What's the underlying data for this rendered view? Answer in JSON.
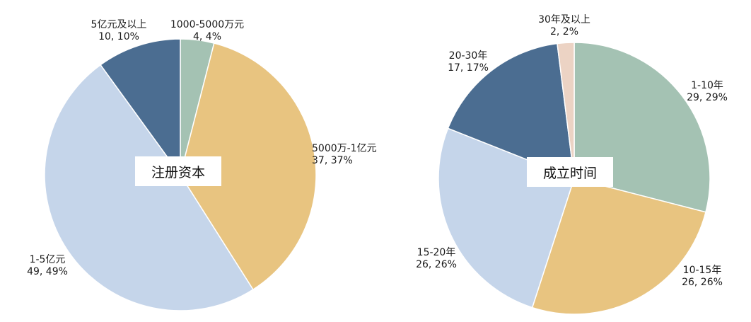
{
  "chart_data": [
    {
      "type": "pie",
      "title": "注册资本",
      "slices": [
        {
          "label": "1000-5000万元",
          "count": 4,
          "percent": "4%",
          "value": 4,
          "color": "#a4c2b3"
        },
        {
          "label": "5000万-1亿元",
          "count": 37,
          "percent": "37%",
          "value": 37,
          "color": "#e8c480"
        },
        {
          "label": "1-5亿元",
          "count": 49,
          "percent": "49%",
          "value": 49,
          "color": "#c5d5ea"
        },
        {
          "label": "5亿元及以上",
          "count": 10,
          "percent": "10%",
          "value": 10,
          "color": "#4b6d91"
        }
      ]
    },
    {
      "type": "pie",
      "title": "成立时间",
      "slices": [
        {
          "label": "1-10年",
          "count": 29,
          "percent": "29%",
          "value": 29,
          "color": "#a4c2b3"
        },
        {
          "label": "10-15年",
          "count": 26,
          "percent": "26%",
          "value": 26,
          "color": "#e8c480"
        },
        {
          "label": "15-20年",
          "count": 26,
          "percent": "26%",
          "value": 26,
          "color": "#c5d5ea"
        },
        {
          "label": "20-30年",
          "count": 17,
          "percent": "17%",
          "value": 17,
          "color": "#4b6d91"
        },
        {
          "label": "30年及以上",
          "count": 2,
          "percent": "2%",
          "value": 2,
          "color": "#ecd3c4"
        }
      ]
    }
  ]
}
